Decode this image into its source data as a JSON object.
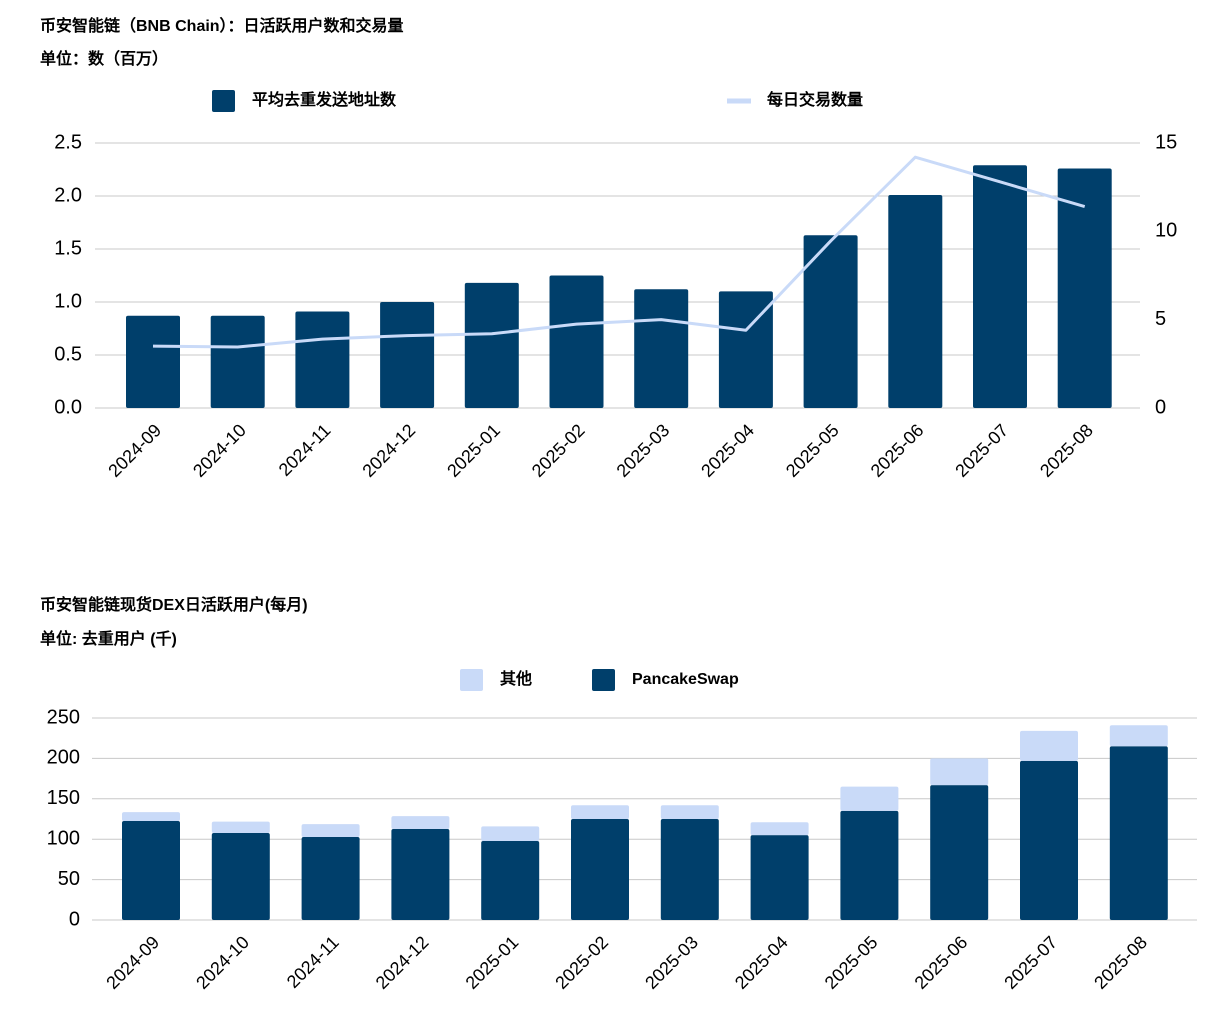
{
  "chart_data": [
    {
      "type": "bar",
      "title": "币安智能链（BNB Chain）：日活跃用户数和交易量",
      "subtitle": "单位：数（百万）",
      "categories": [
        "2024-09",
        "2024-10",
        "2024-11",
        "2024-12",
        "2025-01",
        "2025-02",
        "2025-03",
        "2025-04",
        "2025-05",
        "2025-06",
        "2025-07",
        "2025-08"
      ],
      "series": [
        {
          "name": "平均去重发送地址数",
          "color": "#003f6b",
          "type": "bar",
          "values": [
            0.87,
            0.87,
            0.91,
            1.0,
            1.18,
            1.25,
            1.12,
            1.1,
            1.63,
            2.01,
            2.29,
            2.26
          ]
        },
        {
          "name": "每日交易数量",
          "color": "#c9daf8",
          "type": "line",
          "axis": "y2",
          "values": [
            3.5,
            3.45,
            3.9,
            4.1,
            4.2,
            4.75,
            5.0,
            4.4,
            9.45,
            14.2,
            12.8,
            11.4
          ]
        }
      ],
      "ylim": [
        0,
        2.5
      ],
      "yticks": [
        {
          "value": 0,
          "label": "0.0"
        },
        0.5,
        {
          "value": 1,
          "label": "1.0"
        },
        1.5,
        {
          "value": 2,
          "label": "2.0"
        },
        2.5
      ],
      "y2lim": [
        0,
        15
      ],
      "y2ticks": [
        0,
        5,
        10,
        15
      ],
      "grid": true
    },
    {
      "type": "bar",
      "stacked": true,
      "title": "币安智能链现货DEX日活跃用户(每月)",
      "subtitle": "单位: 去重用户 (千)",
      "categories": [
        "2024-09",
        "2024-10",
        "2024-11",
        "2024-12",
        "2025-01",
        "2025-02",
        "2025-03",
        "2025-04",
        "2025-05",
        "2025-06",
        "2025-07",
        "2025-08"
      ],
      "series": [
        {
          "name": "PancakeSwap",
          "color": "#003f6b",
          "values": [
            122.5,
            107.7,
            102.7,
            112.6,
            97.8,
            125,
            125,
            105,
            135,
            167,
            197,
            215
          ]
        },
        {
          "name": "其他",
          "color": "#c9daf8",
          "values": [
            11,
            14,
            16,
            16,
            18,
            17,
            17,
            16,
            30,
            33,
            37,
            26
          ]
        }
      ],
      "ylim": [
        0,
        250
      ],
      "yticks": [
        0,
        50,
        100,
        150,
        200,
        250
      ],
      "grid": true
    }
  ]
}
